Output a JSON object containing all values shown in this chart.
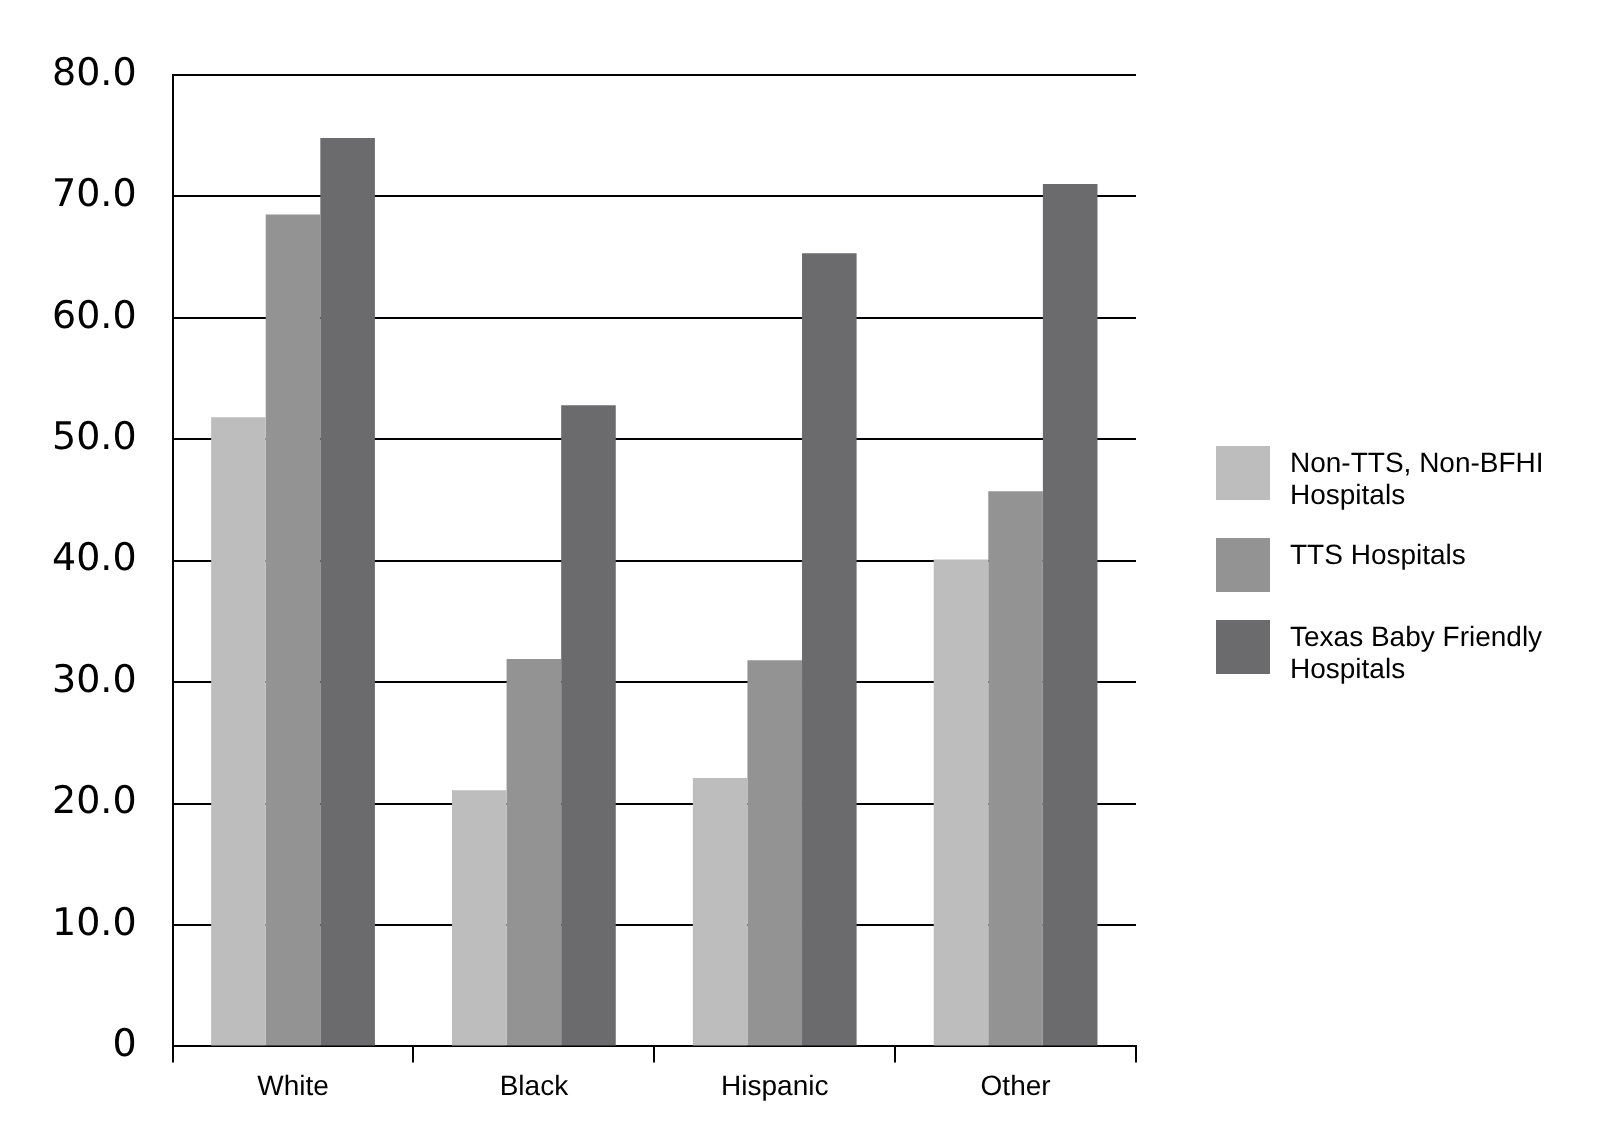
{
  "chart_data": {
    "type": "bar",
    "categories": [
      "White",
      "Black",
      "Hispanic",
      "Other"
    ],
    "series": [
      {
        "name": "Non-TTS, Non-BFHI Hospitals",
        "color": "#bdbdbd",
        "values": [
          51.8,
          21.1,
          22.1,
          40.1
        ]
      },
      {
        "name": "TTS Hospitals",
        "color": "#939393",
        "values": [
          68.5,
          31.9,
          31.8,
          45.7
        ]
      },
      {
        "name": "Texas Baby Friendly Hospitals",
        "color": "#6b6b6d",
        "values": [
          74.8,
          52.8,
          65.3,
          71.0
        ]
      }
    ],
    "ylim": [
      0,
      80
    ],
    "yticks": [
      {
        "value": 0,
        "label": "0"
      },
      {
        "value": 10,
        "label": "10.0"
      },
      {
        "value": 20,
        "label": "20.0"
      },
      {
        "value": 30,
        "label": "30.0"
      },
      {
        "value": 40,
        "label": "40.0"
      },
      {
        "value": 50,
        "label": "50.0"
      },
      {
        "value": 60,
        "label": "60.0"
      },
      {
        "value": 70,
        "label": "70.0"
      },
      {
        "value": 80,
        "label": "80.0"
      }
    ],
    "grid": "y",
    "legend": "right"
  }
}
